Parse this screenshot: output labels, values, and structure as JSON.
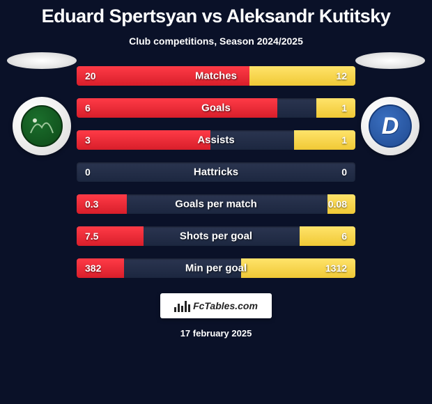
{
  "title": "Eduard Spertsyan vs Aleksandr Kutitsky",
  "subtitle": "Club competitions, Season 2024/2025",
  "date": "17 february 2025",
  "logo_text": "FcTables.com",
  "colors": {
    "background": "#0a1128",
    "bar_bg_top": "#2b3550",
    "bar_bg_bottom": "#1c2740",
    "left_bar_top": "#ff3b47",
    "left_bar_bottom": "#d81e2a",
    "right_bar_top": "#ffe36b",
    "right_bar_bottom": "#f0c935",
    "text": "#ffffff"
  },
  "left_team": {
    "name": "Krasnodar",
    "crest_type": "green-circle"
  },
  "right_team": {
    "name": "Dynamo Moscow",
    "crest_type": "blue-d"
  },
  "stats": [
    {
      "label": "Matches",
      "left_display": "20",
      "right_display": "12",
      "left_pct": 62,
      "right_pct": 38
    },
    {
      "label": "Goals",
      "left_display": "6",
      "right_display": "1",
      "left_pct": 72,
      "right_pct": 14
    },
    {
      "label": "Assists",
      "left_display": "3",
      "right_display": "1",
      "left_pct": 48,
      "right_pct": 22
    },
    {
      "label": "Hattricks",
      "left_display": "0",
      "right_display": "0",
      "left_pct": 0,
      "right_pct": 0
    },
    {
      "label": "Goals per match",
      "left_display": "0.3",
      "right_display": "0.08",
      "left_pct": 18,
      "right_pct": 10
    },
    {
      "label": "Shots per goal",
      "left_display": "7.5",
      "right_display": "6",
      "left_pct": 24,
      "right_pct": 20
    },
    {
      "label": "Min per goal",
      "left_display": "382",
      "right_display": "1312",
      "left_pct": 17,
      "right_pct": 41
    }
  ]
}
